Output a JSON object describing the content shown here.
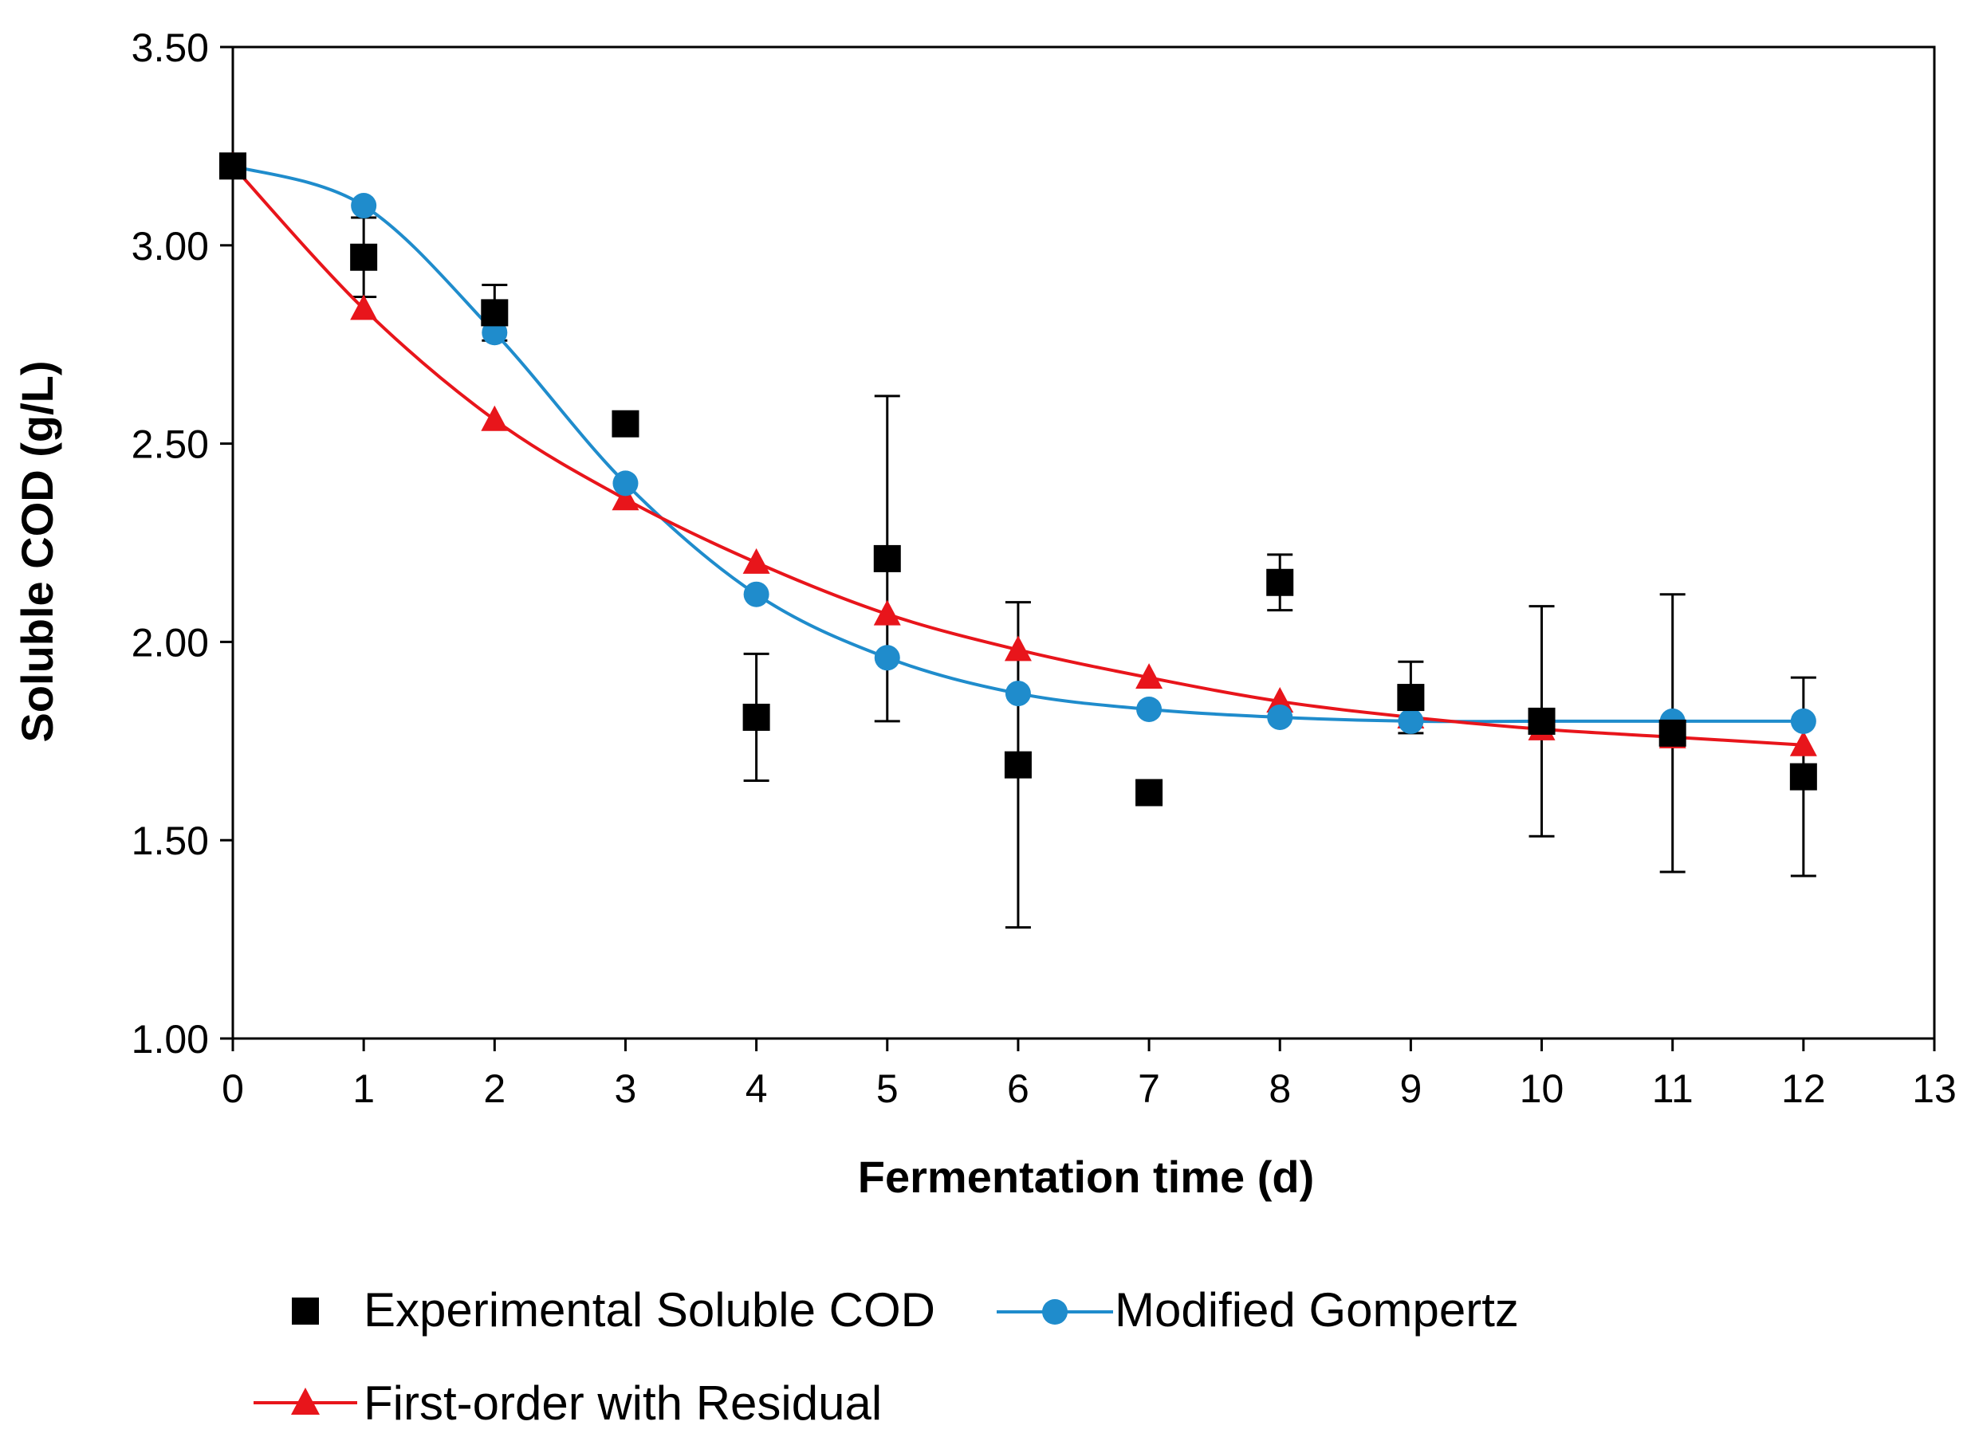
{
  "chart_data": {
    "type": "scatter",
    "title": "",
    "xlabel": "Fermentation time (d)",
    "ylabel": "Soluble COD (g/L)",
    "xlim": [
      0,
      13
    ],
    "ylim": [
      1.0,
      3.5
    ],
    "x_ticks": [
      0,
      1,
      2,
      3,
      4,
      5,
      6,
      7,
      8,
      9,
      10,
      11,
      12,
      13
    ],
    "y_ticks": [
      1.0,
      1.5,
      2.0,
      2.5,
      3.0,
      3.5
    ],
    "x_tick_labels": [
      "0",
      "1",
      "2",
      "3",
      "4",
      "5",
      "6",
      "7",
      "8",
      "9",
      "10",
      "11",
      "12",
      "13"
    ],
    "y_tick_labels": [
      "1.00",
      "1.50",
      "2.00",
      "2.50",
      "3.00",
      "3.50"
    ],
    "grid": false,
    "legend_position": "bottom",
    "series": [
      {
        "name": "Experimental Soluble COD",
        "kind": "points",
        "marker": "square",
        "color": "#000000",
        "x": [
          0,
          1,
          2,
          3,
          4,
          5,
          6,
          7,
          8,
          9,
          10,
          11,
          12
        ],
        "y": [
          3.2,
          2.97,
          2.83,
          2.55,
          1.81,
          2.21,
          1.69,
          1.62,
          2.15,
          1.86,
          1.8,
          1.77,
          1.66
        ],
        "error": [
          0.0,
          0.1,
          0.07,
          0.02,
          0.16,
          0.41,
          0.41,
          0.01,
          0.07,
          0.09,
          0.29,
          0.35,
          0.25
        ]
      },
      {
        "name": "Modified Gompertz",
        "kind": "line-markers",
        "marker": "circle",
        "color": "#1f8ccc",
        "x": [
          0,
          1,
          2,
          3,
          4,
          5,
          6,
          7,
          8,
          9,
          10,
          11,
          12
        ],
        "y": [
          3.2,
          3.1,
          2.78,
          2.4,
          2.12,
          1.96,
          1.87,
          1.83,
          1.81,
          1.8,
          1.8,
          1.8,
          1.8
        ]
      },
      {
        "name": "First-order with Residual",
        "kind": "line-markers",
        "marker": "triangle",
        "color": "#e8151b",
        "x": [
          0,
          1,
          2,
          3,
          4,
          5,
          6,
          7,
          8,
          9,
          10,
          11,
          12
        ],
        "y": [
          3.2,
          2.84,
          2.56,
          2.36,
          2.2,
          2.07,
          1.98,
          1.91,
          1.85,
          1.81,
          1.78,
          1.76,
          1.74
        ]
      }
    ]
  }
}
